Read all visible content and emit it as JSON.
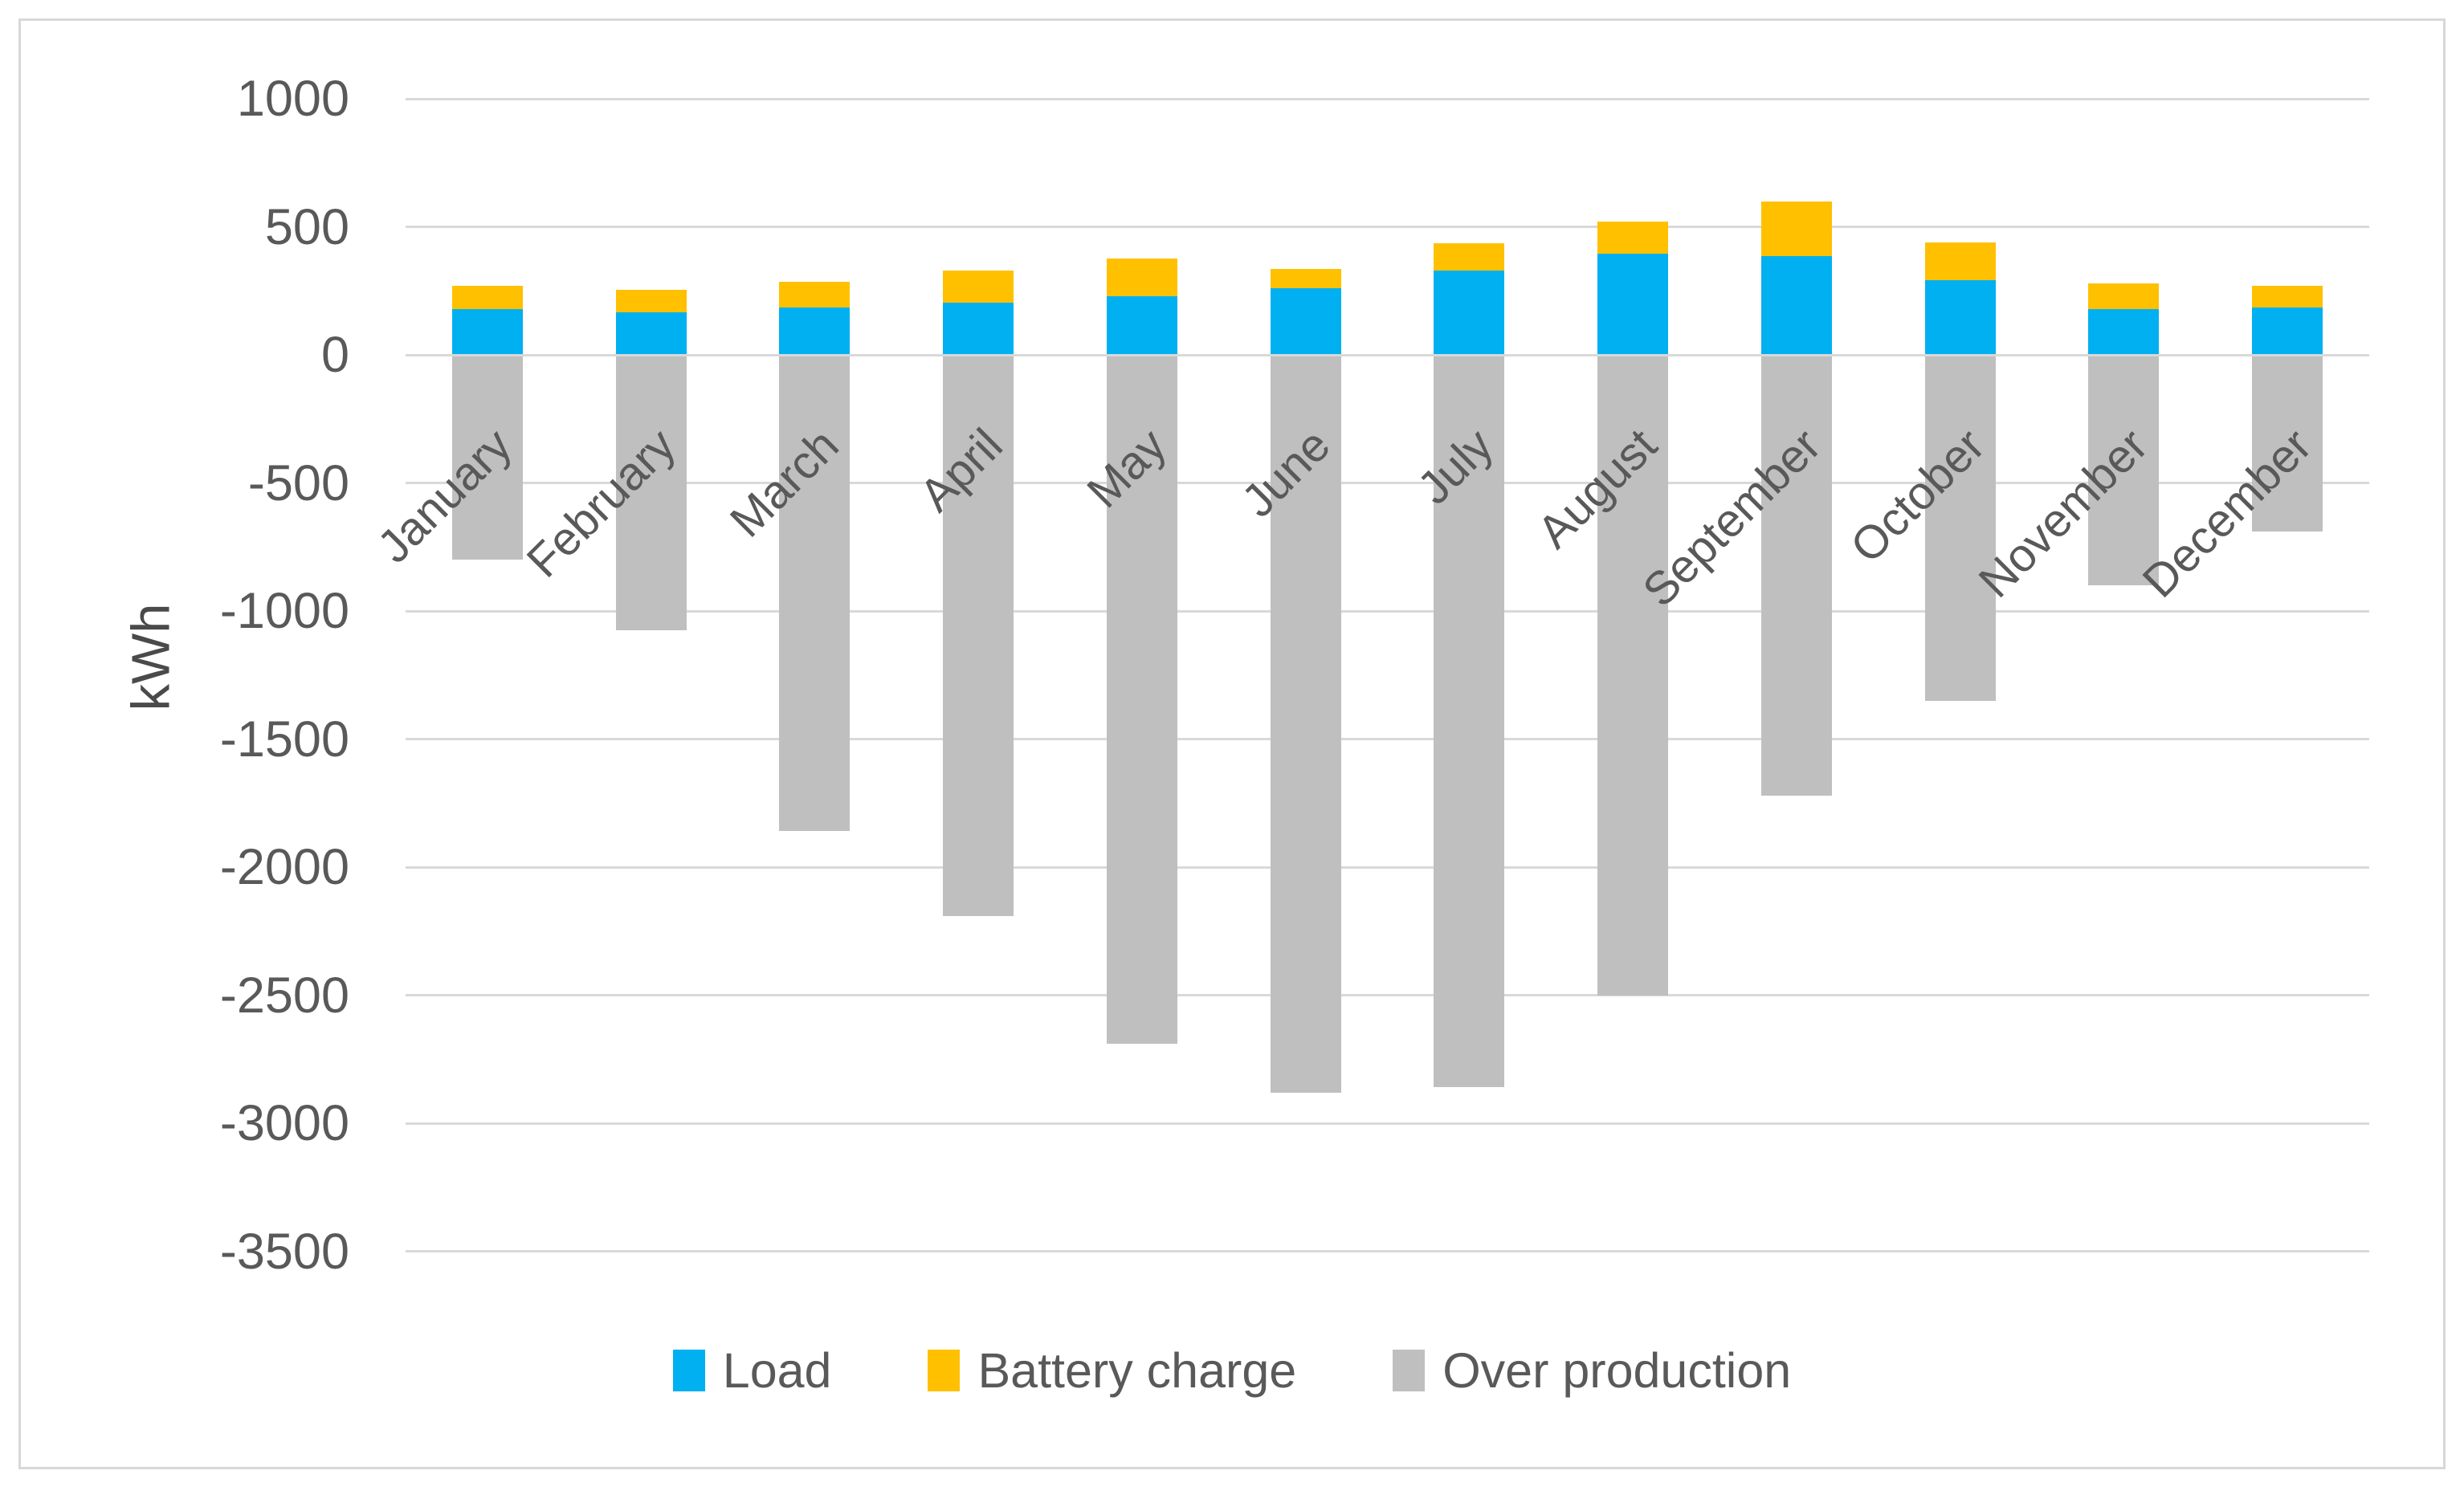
{
  "chart_data": {
    "type": "bar",
    "stacked": true,
    "title": "",
    "categories": [
      "January",
      "February",
      "March",
      "April",
      "May",
      "June",
      "July",
      "August",
      "September",
      "October",
      "November",
      "December"
    ],
    "series": [
      {
        "name": "Load",
        "color": "#00B0F0",
        "values": [
          180,
          165,
          185,
          205,
          230,
          260,
          330,
          395,
          385,
          290,
          180,
          185
        ]
      },
      {
        "name": "Battery charge",
        "color": "#FFC000",
        "values": [
          90,
          90,
          100,
          125,
          145,
          75,
          105,
          125,
          215,
          150,
          100,
          85
        ]
      },
      {
        "name": "Over production",
        "color": "#BFBFBF",
        "values": [
          -800,
          -1075,
          -1860,
          -2190,
          -2690,
          -2880,
          -2860,
          -2500,
          -1720,
          -1350,
          -900,
          -690
        ]
      }
    ],
    "xlabel": "",
    "ylabel": "kWh",
    "ylim": [
      -3500,
      1000
    ],
    "y_ticks": [
      1000,
      500,
      0,
      -500,
      -1000,
      -1500,
      -2000,
      -2500,
      -3000,
      -3500
    ],
    "grid": true,
    "legend_position": "bottom",
    "gridline_color": "#D9D9D9",
    "axis_text_color": "#595959"
  }
}
